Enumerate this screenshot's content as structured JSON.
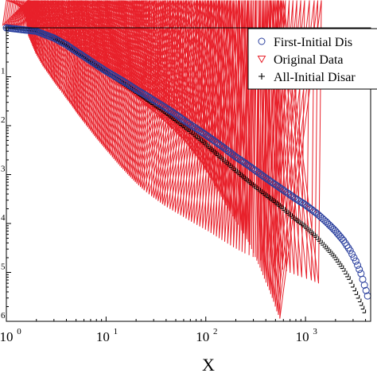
{
  "chart_data": {
    "type": "scatter",
    "xlabel": "X",
    "ylabel": "",
    "xscale": "log",
    "yscale": "log",
    "xlim": [
      1,
      4500
    ],
    "ylim": [
      1e-06,
      1
    ],
    "x_ticks": [
      {
        "base": "10",
        "exp": "0",
        "value": 1
      },
      {
        "base": "10",
        "exp": "1",
        "value": 10
      },
      {
        "base": "10",
        "exp": "2",
        "value": 100
      },
      {
        "base": "10",
        "exp": "3",
        "value": 1000
      }
    ],
    "y_ticks": [
      {
        "exp": "1",
        "value": 0.1
      },
      {
        "exp": "2",
        "value": 0.01
      },
      {
        "exp": "3",
        "value": 0.001
      },
      {
        "exp": "4",
        "value": 0.0001
      },
      {
        "exp": "5",
        "value": 1e-05
      },
      {
        "exp": "6",
        "value": 1e-06
      }
    ],
    "legend_position": "top-right",
    "series": [
      {
        "name": "First-Initial Dis",
        "marker": "circle",
        "color": "#2a3f9e",
        "points": [
          [
            1,
            1.0
          ],
          [
            2,
            0.85
          ],
          [
            3,
            0.62
          ],
          [
            4,
            0.45
          ],
          [
            5,
            0.33
          ],
          [
            6,
            0.26
          ],
          [
            7,
            0.21
          ],
          [
            8,
            0.175
          ],
          [
            10,
            0.13
          ],
          [
            12,
            0.105
          ],
          [
            15,
            0.08
          ],
          [
            20,
            0.055
          ],
          [
            25,
            0.042
          ],
          [
            30,
            0.033
          ],
          [
            40,
            0.023
          ],
          [
            50,
            0.017
          ],
          [
            60,
            0.013
          ],
          [
            70,
            0.0105
          ],
          [
            80,
            0.0088
          ],
          [
            100,
            0.0065
          ],
          [
            120,
            0.005
          ],
          [
            150,
            0.0036
          ],
          [
            200,
            0.0023
          ],
          [
            250,
            0.0017
          ],
          [
            300,
            0.0013
          ],
          [
            400,
            0.00085
          ],
          [
            500,
            0.00062
          ],
          [
            600,
            0.00048
          ],
          [
            800,
            0.00032
          ],
          [
            1000,
            0.00024
          ],
          [
            1300,
            0.00016
          ],
          [
            1600,
            0.00011
          ],
          [
            2000,
            7e-05
          ],
          [
            2400,
            4.5e-05
          ],
          [
            2800,
            2.8e-05
          ],
          [
            3200,
            1.7e-05
          ],
          [
            3600,
            9.5e-06
          ],
          [
            3900,
            5.5e-06
          ],
          [
            4200,
            3.3e-06
          ]
        ]
      },
      {
        "name": "Original Data",
        "marker": "triangle-down",
        "color": "#e8202a",
        "points": [
          [
            1,
            1.0
          ],
          [
            2,
            0.85
          ],
          [
            3,
            0.6
          ],
          [
            4,
            0.43
          ],
          [
            5,
            0.31
          ],
          [
            6,
            0.24
          ],
          [
            7,
            0.19
          ],
          [
            8,
            0.155
          ],
          [
            10,
            0.11
          ],
          [
            12,
            0.085
          ],
          [
            15,
            0.06
          ],
          [
            20,
            0.038
          ],
          [
            25,
            0.026
          ],
          [
            30,
            0.019
          ],
          [
            40,
            0.0115
          ],
          [
            50,
            0.0075
          ],
          [
            60,
            0.0052
          ],
          [
            70,
            0.0037
          ],
          [
            80,
            0.0026
          ],
          [
            100,
            0.0014
          ],
          [
            120,
            0.00075
          ],
          [
            150,
            0.00035
          ],
          [
            180,
            0.00018
          ],
          [
            220,
            9.5e-05
          ],
          [
            260,
            5.5e-05
          ],
          [
            300,
            3.2e-05
          ],
          [
            340,
            1.8e-05
          ],
          [
            380,
            1.1e-05
          ],
          [
            420,
            6.5e-06
          ],
          [
            470,
            3.8e-06
          ],
          [
            520,
            2.2e-06
          ],
          [
            560,
            1.4e-06
          ],
          [
            600,
            1e-06
          ]
        ]
      },
      {
        "name": "All-Initial Disar",
        "marker": "plus",
        "color": "#000000",
        "points": [
          [
            1,
            1.0
          ],
          [
            2,
            0.85
          ],
          [
            3,
            0.61
          ],
          [
            4,
            0.44
          ],
          [
            5,
            0.32
          ],
          [
            6,
            0.25
          ],
          [
            7,
            0.2
          ],
          [
            8,
            0.165
          ],
          [
            10,
            0.12
          ],
          [
            12,
            0.095
          ],
          [
            15,
            0.071
          ],
          [
            20,
            0.048
          ],
          [
            25,
            0.035
          ],
          [
            30,
            0.027
          ],
          [
            40,
            0.018
          ],
          [
            50,
            0.0128
          ],
          [
            60,
            0.0096
          ],
          [
            70,
            0.0076
          ],
          [
            80,
            0.0061
          ],
          [
            100,
            0.0042
          ],
          [
            120,
            0.003
          ],
          [
            150,
            0.002
          ],
          [
            200,
            0.0012
          ],
          [
            250,
            0.00082
          ],
          [
            300,
            0.0006
          ],
          [
            400,
            0.00038
          ],
          [
            500,
            0.00027
          ],
          [
            600,
            0.0002
          ],
          [
            800,
            0.00012
          ],
          [
            1000,
            8.5e-05
          ],
          [
            1300,
            5.2e-05
          ],
          [
            1600,
            3.3e-05
          ],
          [
            2000,
            2e-05
          ],
          [
            2400,
            1.2e-05
          ],
          [
            2800,
            7.2e-06
          ],
          [
            3200,
            4.2e-06
          ],
          [
            3600,
            2.5e-06
          ],
          [
            4000,
            1.5e-06
          ]
        ]
      }
    ]
  }
}
